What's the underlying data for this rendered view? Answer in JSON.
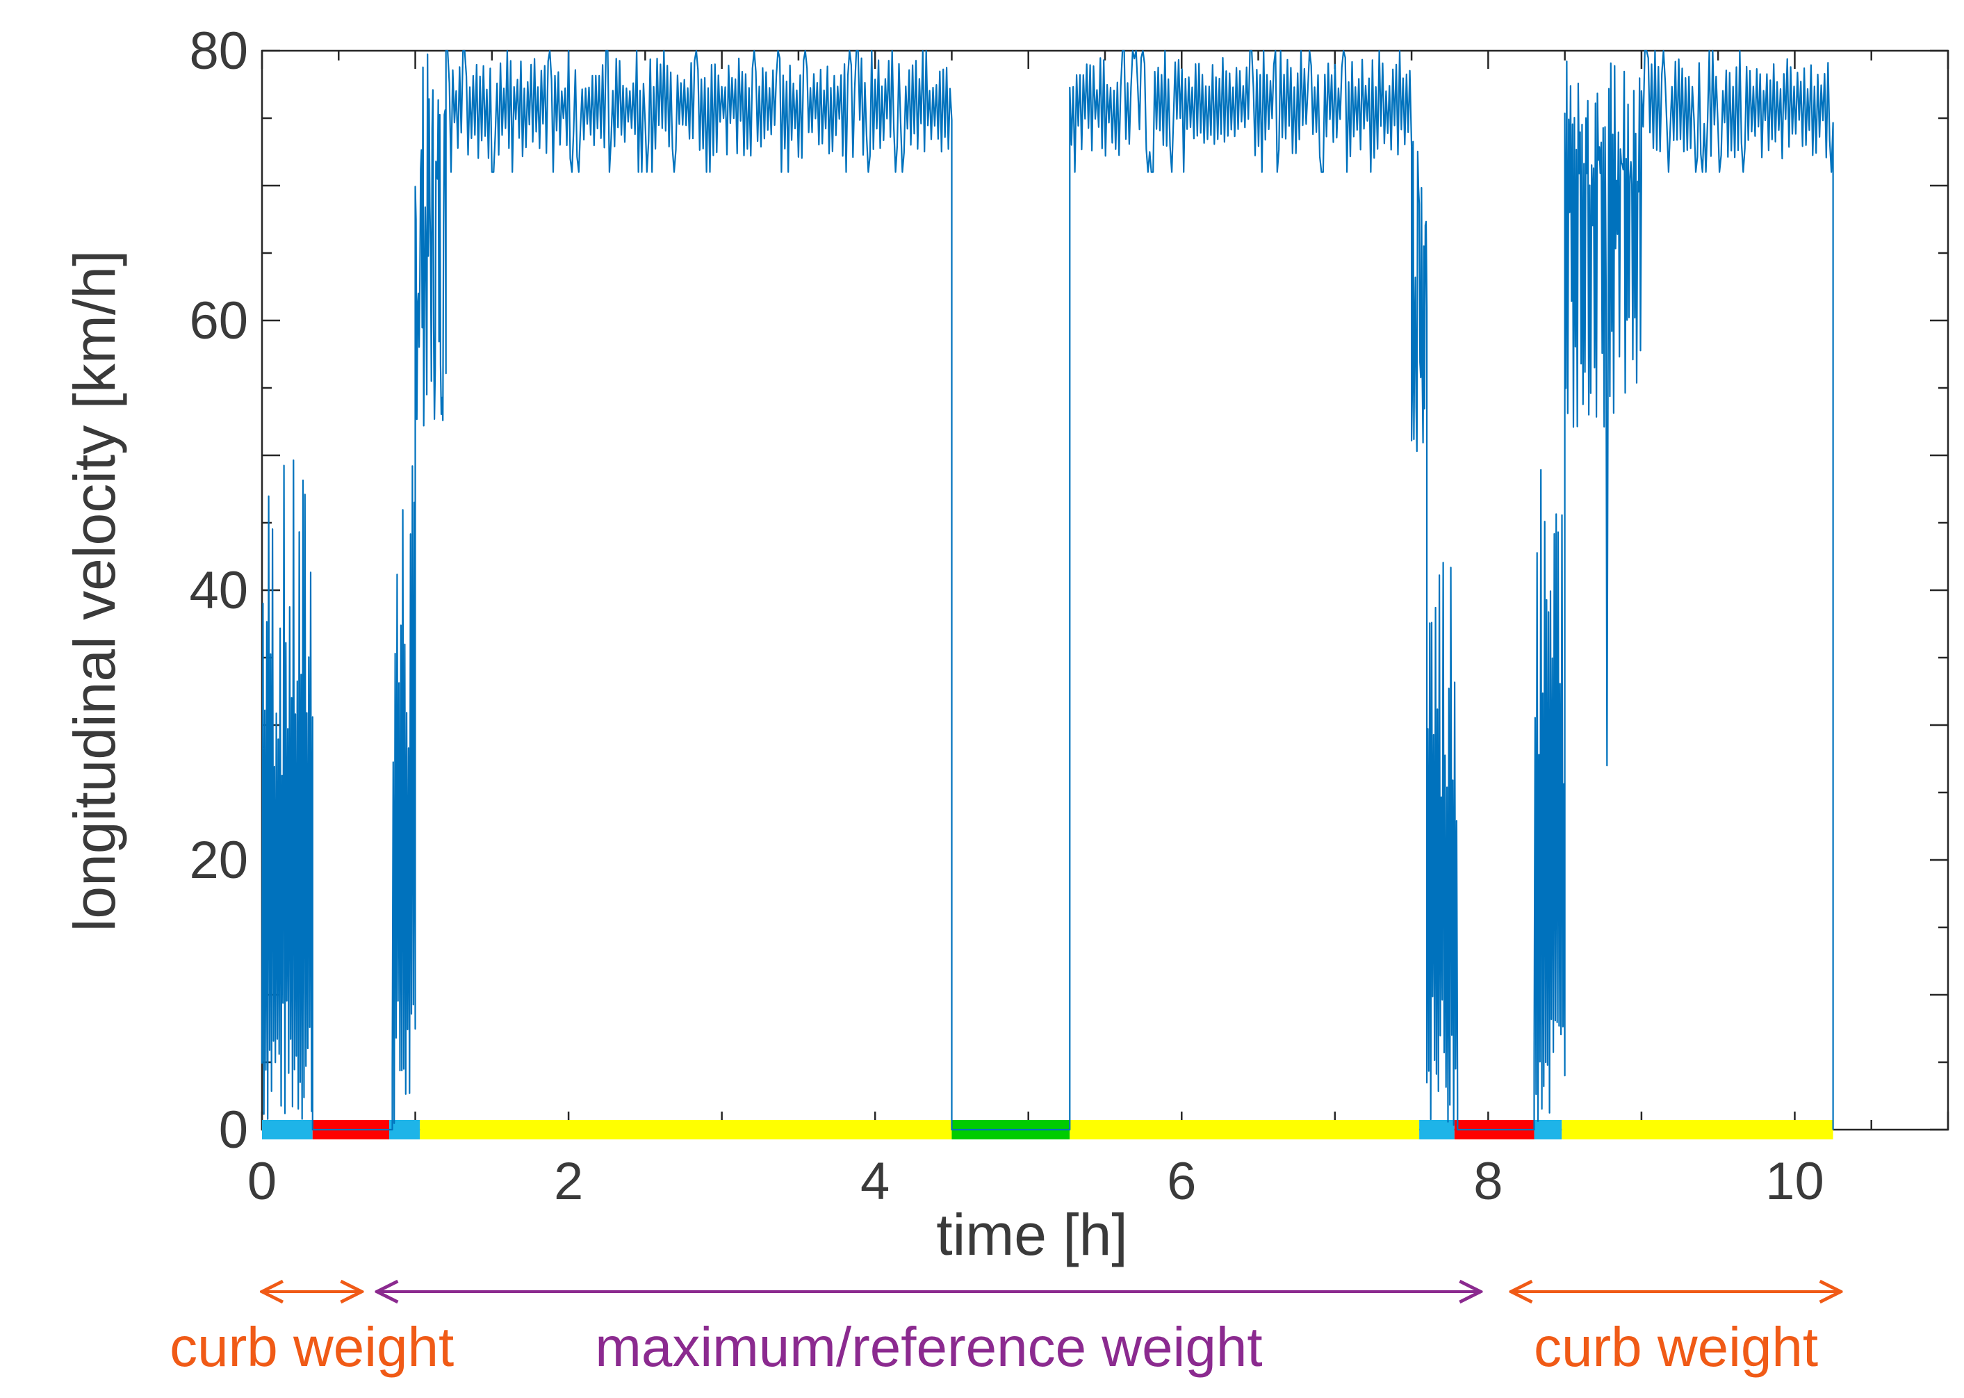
{
  "chart_data": {
    "type": "line",
    "xlabel": "time [h]",
    "ylabel": "longitudinal velocity [km/h]",
    "xlim": [
      0,
      11
    ],
    "ylim": [
      0,
      80
    ],
    "xticks": [
      0,
      2,
      4,
      6,
      8,
      10
    ],
    "yticks": [
      0,
      20,
      40,
      60,
      80
    ],
    "x_minor_step": 0.5,
    "y_minor_step": 5,
    "grid": false,
    "line_color": "#0072BD",
    "series": [
      {
        "segments": [
          {
            "mode": "urban",
            "t_start": 0.0,
            "t_end": 0.33,
            "v_min": 0,
            "v_max": 50
          },
          {
            "mode": "stop",
            "t_start": 0.33,
            "t_end": 0.85,
            "v": 0
          },
          {
            "mode": "urban",
            "t_start": 0.85,
            "t_end": 1.0,
            "v_min": 0,
            "v_max": 50
          },
          {
            "mode": "ramp",
            "t_start": 1.0,
            "t_end": 1.2,
            "v_min": 52,
            "v_max": 80
          },
          {
            "mode": "highway",
            "t_start": 1.2,
            "t_end": 4.5,
            "v_mean": 76,
            "v_min": 71,
            "v_max": 80
          },
          {
            "mode": "stop",
            "t_start": 4.5,
            "t_end": 5.27,
            "v": 0
          },
          {
            "mode": "highway",
            "t_start": 5.27,
            "t_end": 7.5,
            "v_mean": 76,
            "v_min": 71,
            "v_max": 80
          },
          {
            "mode": "ramp",
            "t_start": 7.5,
            "t_end": 7.6,
            "v_min": 50,
            "v_max": 78
          },
          {
            "mode": "urban",
            "t_start": 7.6,
            "t_end": 7.8,
            "v_min": 0,
            "v_max": 45
          },
          {
            "mode": "stop",
            "t_start": 7.8,
            "t_end": 8.3,
            "v": 0
          },
          {
            "mode": "urban",
            "t_start": 8.3,
            "t_end": 8.5,
            "v_min": 0,
            "v_max": 50
          },
          {
            "mode": "mixed",
            "t_start": 8.5,
            "t_end": 9.0,
            "v_min": 27,
            "v_max": 80
          },
          {
            "mode": "highway",
            "t_start": 9.0,
            "t_end": 10.25,
            "v_mean": 76,
            "v_min": 71,
            "v_max": 80
          },
          {
            "mode": "stop",
            "t_start": 10.25,
            "t_end": 10.25,
            "v": 0
          }
        ]
      }
    ],
    "phase_bar": [
      {
        "start": 0.0,
        "end": 0.33,
        "color": "#1EB4E8"
      },
      {
        "start": 0.33,
        "end": 0.83,
        "color": "#FF0000"
      },
      {
        "start": 0.83,
        "end": 1.03,
        "color": "#1EB4E8"
      },
      {
        "start": 1.03,
        "end": 4.5,
        "color": "#FFFF00"
      },
      {
        "start": 4.5,
        "end": 5.27,
        "color": "#00CC00"
      },
      {
        "start": 5.27,
        "end": 7.55,
        "color": "#FFFF00"
      },
      {
        "start": 7.55,
        "end": 7.78,
        "color": "#1EB4E8"
      },
      {
        "start": 7.78,
        "end": 8.3,
        "color": "#FF0000"
      },
      {
        "start": 8.3,
        "end": 8.48,
        "color": "#1EB4E8"
      },
      {
        "start": 8.48,
        "end": 10.25,
        "color": "#FFFF00"
      }
    ],
    "annotations": [
      {
        "id": "curb-weight-1",
        "label": "curb weight",
        "t_start": 0.0,
        "t_end": 0.65,
        "color": "#F05A16"
      },
      {
        "id": "max-ref-weight",
        "label": "maximum/reference weight",
        "t_start": 0.75,
        "t_end": 7.95,
        "color": "#8B2A8F"
      },
      {
        "id": "curb-weight-2",
        "label": "curb weight",
        "t_start": 8.15,
        "t_end": 10.3,
        "color": "#F05A16"
      }
    ]
  }
}
